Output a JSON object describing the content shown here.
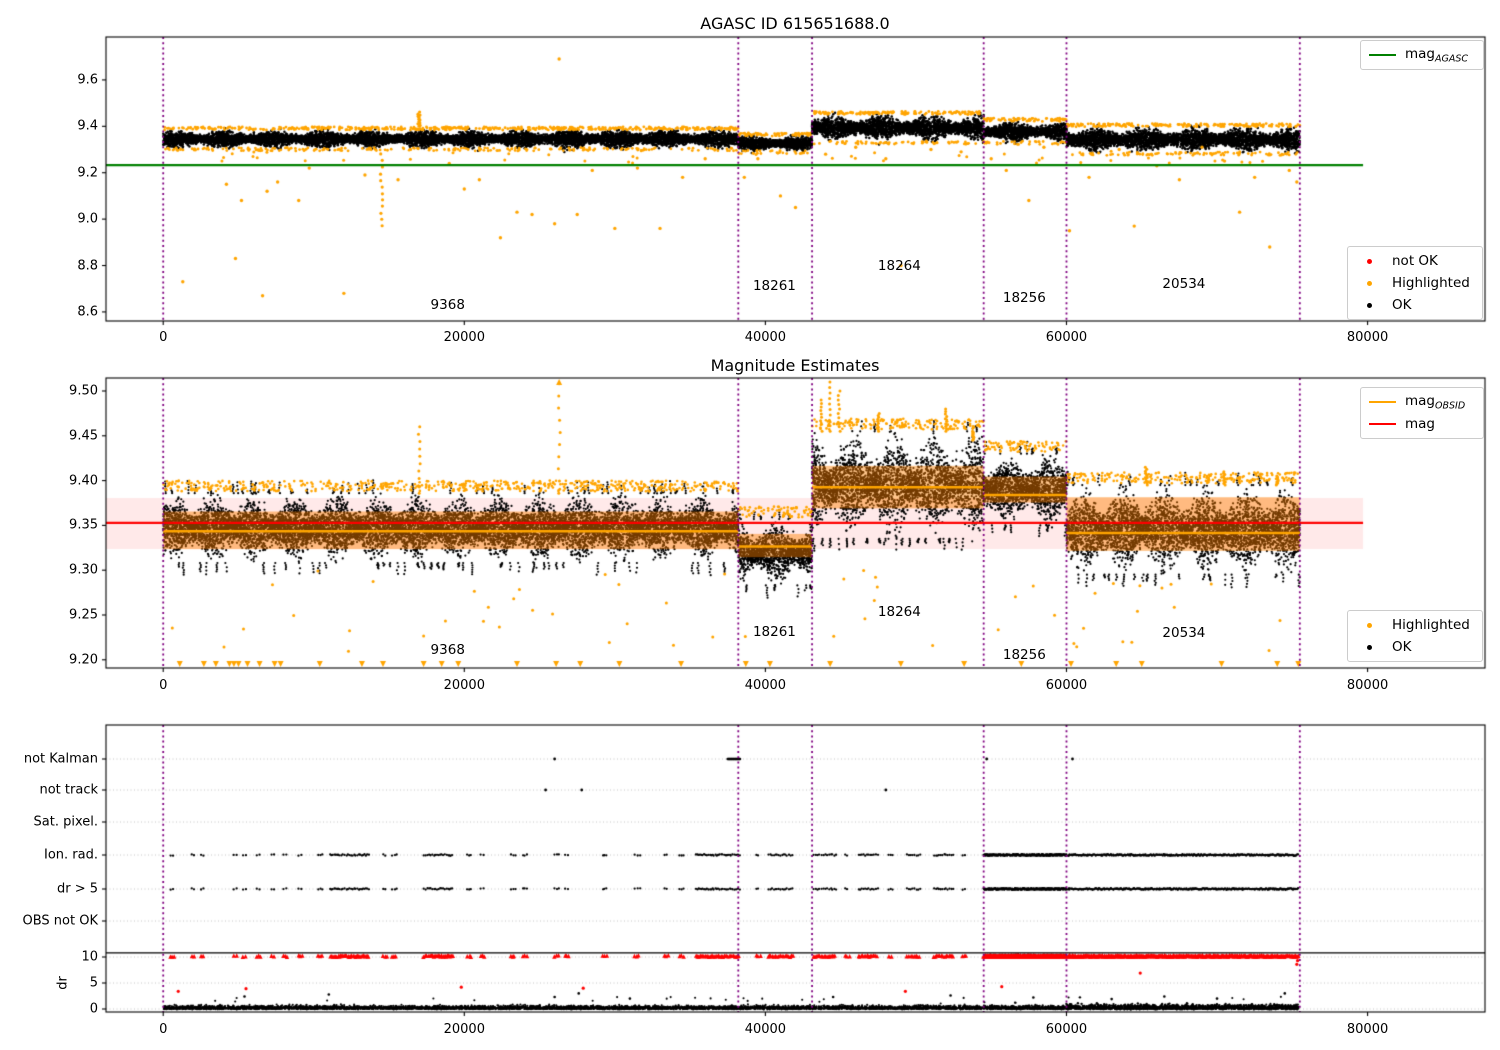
{
  "chart_data": {
    "type": "scatter",
    "x_axis": {
      "xlim": [
        -3800,
        87800
      ],
      "tick_values": [
        0,
        20000,
        40000,
        60000,
        80000
      ],
      "tick_labels": [
        "0",
        "20000",
        "40000",
        "60000",
        "80000"
      ]
    },
    "boundaries": [
      0,
      38200,
      43100,
      54500,
      60000,
      75500
    ],
    "colors": {
      "ok": "#000000",
      "highlighted": "#ffa500",
      "not_ok": "#ff0000",
      "mag_agasc_line": "#008000",
      "mag_line": "#ff0000",
      "mag_obsid_line": "#ffa500",
      "obsid_band_fill": "rgba(255,128,0,0.45)",
      "mag_band_fill": "rgba(255,0,0,0.085)",
      "boundary_line": "#800080",
      "grid": "#c4c4c4",
      "spine": "#000000"
    },
    "segments": [
      {
        "obsid": "9368",
        "x_start": 0,
        "x_end": 38200,
        "top_band": [
          9.302,
          9.388
        ],
        "mid_band": [
          9.308,
          9.386
        ],
        "mag_obsid": 9.3435,
        "obsid_band": [
          9.3235,
          9.3655
        ],
        "label_x": 18900,
        "top_label_y": 8.63,
        "mid_label_y": 9.211
      },
      {
        "obsid": "18261",
        "x_start": 38200,
        "x_end": 43100,
        "top_band": [
          9.29,
          9.362
        ],
        "mid_band": [
          9.283,
          9.357
        ],
        "mag_obsid": 9.3265,
        "obsid_band": [
          9.3145,
          9.3405
        ],
        "label_x": 40600,
        "top_label_y": 8.71,
        "mid_label_y": 9.231
      },
      {
        "obsid": "18264",
        "x_start": 43100,
        "x_end": 54500,
        "top_band": [
          9.331,
          9.455
        ],
        "mid_band": [
          9.335,
          9.455
        ],
        "mag_obsid": 9.3925,
        "obsid_band": [
          9.369,
          9.4165
        ],
        "label_x": 48900,
        "top_label_y": 8.8,
        "mid_label_y": 9.253
      },
      {
        "obsid": "18256",
        "x_start": 54500,
        "x_end": 60000,
        "top_band": [
          9.33,
          9.425
        ],
        "mid_band": [
          9.35,
          9.43
        ],
        "mag_obsid": 9.384,
        "obsid_band": [
          9.3755,
          9.4045
        ],
        "label_x": 57200,
        "top_label_y": 8.66,
        "mid_label_y": 9.205
      },
      {
        "obsid": "20534",
        "x_start": 60000,
        "x_end": 75500,
        "top_band": [
          9.283,
          9.402
        ],
        "mid_band": [
          9.295,
          9.395
        ],
        "mag_obsid": 9.3415,
        "obsid_band": [
          9.3215,
          9.3815
        ],
        "label_x": 67800,
        "top_label_y": 8.72,
        "mid_label_y": 9.23
      }
    ],
    "top": {
      "title": "AGASC ID 615651688.0",
      "ylim": [
        8.561,
        9.785
      ],
      "y_tick_values": [
        9.6,
        9.4,
        9.2,
        9.0,
        8.8,
        8.6
      ],
      "y_tick_labels": [
        "9.6",
        "9.4",
        "9.2",
        "9.0",
        "8.8",
        "8.6"
      ],
      "mag_agasc": 9.233,
      "line_end_x": 79700,
      "legend_line": {
        "label_main": "mag",
        "label_sub": "AGASC"
      },
      "legend_markers": [
        {
          "label": "not OK",
          "color": "#ff0000"
        },
        {
          "label": "Highlighted",
          "color": "#ffa500"
        },
        {
          "label": "OK",
          "color": "#000000"
        }
      ],
      "high_point": [
        26300,
        9.69
      ],
      "streaks": [
        [
          14500,
          8.97,
          9.28
        ],
        [
          17000,
          9.4,
          9.46
        ]
      ],
      "outliers": [
        [
          1300,
          8.73
        ],
        [
          4200,
          9.15
        ],
        [
          4800,
          8.83
        ],
        [
          5200,
          9.08
        ],
        [
          6600,
          8.67
        ],
        [
          6900,
          9.12
        ],
        [
          7600,
          9.16
        ],
        [
          9000,
          9.08
        ],
        [
          9700,
          9.22
        ],
        [
          12000,
          8.68
        ],
        [
          13400,
          9.19
        ],
        [
          15600,
          9.17
        ],
        [
          19000,
          9.24
        ],
        [
          20000,
          9.13
        ],
        [
          21000,
          9.17
        ],
        [
          22400,
          8.92
        ],
        [
          23500,
          9.03
        ],
        [
          24500,
          9.02
        ],
        [
          26000,
          8.98
        ],
        [
          27500,
          9.02
        ],
        [
          28500,
          9.21
        ],
        [
          30000,
          8.96
        ],
        [
          31500,
          9.22
        ],
        [
          33000,
          8.96
        ],
        [
          34500,
          9.18
        ],
        [
          36000,
          9.26
        ],
        [
          38600,
          9.18
        ],
        [
          39500,
          9.26
        ],
        [
          41000,
          9.1
        ],
        [
          42000,
          9.05
        ],
        [
          44000,
          9.28
        ],
        [
          46000,
          9.31
        ],
        [
          48000,
          9.26
        ],
        [
          49000,
          8.8
        ],
        [
          51000,
          9.3
        ],
        [
          53000,
          9.29
        ],
        [
          55000,
          9.26
        ],
        [
          56000,
          9.21
        ],
        [
          57500,
          9.08
        ],
        [
          58500,
          9.31
        ],
        [
          60200,
          8.95
        ],
        [
          61500,
          9.18
        ],
        [
          63500,
          9.3
        ],
        [
          64500,
          8.97
        ],
        [
          66000,
          9.23
        ],
        [
          67500,
          9.17
        ],
        [
          69000,
          9.31
        ],
        [
          70500,
          9.25
        ],
        [
          71500,
          9.03
        ],
        [
          72500,
          9.18
        ],
        [
          73500,
          8.88
        ],
        [
          74800,
          9.21
        ],
        [
          75300,
          9.16
        ]
      ]
    },
    "middle": {
      "title": "Magnitude Estimates",
      "ylim": [
        9.191,
        9.5145
      ],
      "y_tick_values": [
        9.5,
        9.45,
        9.4,
        9.35,
        9.3,
        9.25,
        9.2
      ],
      "y_tick_labels": [
        "9.50",
        "9.45",
        "9.40",
        "9.35",
        "9.30",
        "9.25",
        "9.20"
      ],
      "mag": 9.3527,
      "mag_band": [
        9.3237,
        9.3806
      ],
      "line_end_x": 79700,
      "legend_lines": [
        {
          "label_main": "mag",
          "label_sub": "OBSID",
          "color": "#ffa500"
        },
        {
          "label_main": "mag",
          "label_sub": "",
          "color": "#ff0000"
        }
      ],
      "legend_markers": [
        {
          "label": "Highlighted",
          "color": "#ffa500"
        },
        {
          "label": "OK",
          "color": "#000000"
        }
      ],
      "spikes_up": [
        [
          17000,
          9.46
        ],
        [
          26300,
          9.508
        ],
        [
          43700,
          9.49
        ],
        [
          44300,
          9.51
        ],
        [
          44900,
          9.5
        ],
        [
          47500,
          9.475
        ],
        [
          52000,
          9.48
        ],
        [
          53800,
          9.445
        ],
        [
          65300,
          9.415
        ],
        [
          70500,
          9.41
        ],
        [
          74000,
          9.405
        ]
      ],
      "clip_triangles": [
        1100,
        2700,
        3500,
        4400,
        4700,
        5000,
        5600,
        6400,
        7400,
        7800,
        10400,
        13200,
        14600,
        17300,
        18500,
        19600,
        23500,
        26100,
        27700,
        30300,
        34400,
        38700,
        40300,
        44300,
        49000,
        53200,
        57000,
        60300,
        63300,
        65000,
        70300,
        74000,
        75400
      ]
    },
    "bottom": {
      "categories": [
        "not Kalman",
        "not track",
        "Sat. pixel.",
        "Ion. rad.",
        "dr > 5",
        "OBS not OK"
      ],
      "dr_tick_labels": [
        "10",
        "5",
        "0"
      ],
      "dr_tick_values": [
        10,
        5,
        0
      ],
      "ylabel_dr": "dr",
      "hline_dr": 10.8,
      "flag_clusters": [
        [
          500,
          800,
          1
        ],
        [
          1900,
          2100,
          1
        ],
        [
          2500,
          2700,
          1
        ],
        [
          4700,
          5000,
          1
        ],
        [
          5300,
          5600,
          1
        ],
        [
          6200,
          6500,
          1
        ],
        [
          7200,
          7500,
          1
        ],
        [
          8000,
          8300,
          1
        ],
        [
          9000,
          9300,
          1
        ],
        [
          10300,
          10600,
          1
        ],
        [
          11100,
          13700,
          1.6
        ],
        [
          14600,
          14900,
          1
        ],
        [
          15200,
          15500,
          1
        ],
        [
          17300,
          19300,
          1.6
        ],
        [
          20200,
          20500,
          1
        ],
        [
          21100,
          21400,
          1
        ],
        [
          23100,
          23400,
          1
        ],
        [
          23900,
          24200,
          1
        ],
        [
          26000,
          26300,
          1
        ],
        [
          26700,
          27000,
          1
        ],
        [
          29200,
          29500,
          1
        ],
        [
          31300,
          31700,
          1
        ],
        [
          33300,
          33600,
          1
        ],
        [
          34300,
          34600,
          1
        ],
        [
          35400,
          38300,
          1.6
        ],
        [
          39400,
          39700,
          1
        ],
        [
          40200,
          41900,
          1.4
        ],
        [
          43200,
          44700,
          1.4
        ],
        [
          45300,
          45600,
          1
        ],
        [
          46200,
          47500,
          1.4
        ],
        [
          48200,
          48500,
          1
        ],
        [
          49400,
          50300,
          1.2
        ],
        [
          51200,
          52500,
          1.4
        ],
        [
          53100,
          53400,
          1
        ],
        [
          54500,
          60000,
          8
        ],
        [
          60100,
          75400,
          3.2
        ]
      ],
      "not_kalman_points": [
        26000,
        54700,
        60400
      ],
      "not_kalman_dash": [
        37500,
        38350
      ],
      "not_track_points": [
        25400,
        27800,
        48000
      ],
      "red_low_points": [
        [
          1000,
          3.4
        ],
        [
          5500,
          3.9
        ],
        [
          19800,
          4.2
        ],
        [
          27900,
          4.0
        ],
        [
          49300,
          3.4
        ],
        [
          55700,
          4.3
        ],
        [
          64900,
          6.9
        ],
        [
          75300,
          8.6
        ],
        [
          75350,
          9.3
        ]
      ],
      "black_spikes": [
        [
          5400,
          2.4
        ],
        [
          11000,
          2.8
        ],
        [
          26000,
          2.3
        ],
        [
          27600,
          3.0
        ],
        [
          31000,
          2.0
        ],
        [
          44500,
          2.3
        ],
        [
          52300,
          2.6
        ],
        [
          57800,
          2.2
        ],
        [
          63000,
          1.9
        ],
        [
          66500,
          2.4
        ],
        [
          70000,
          2.0
        ],
        [
          74500,
          3.0
        ]
      ]
    }
  }
}
